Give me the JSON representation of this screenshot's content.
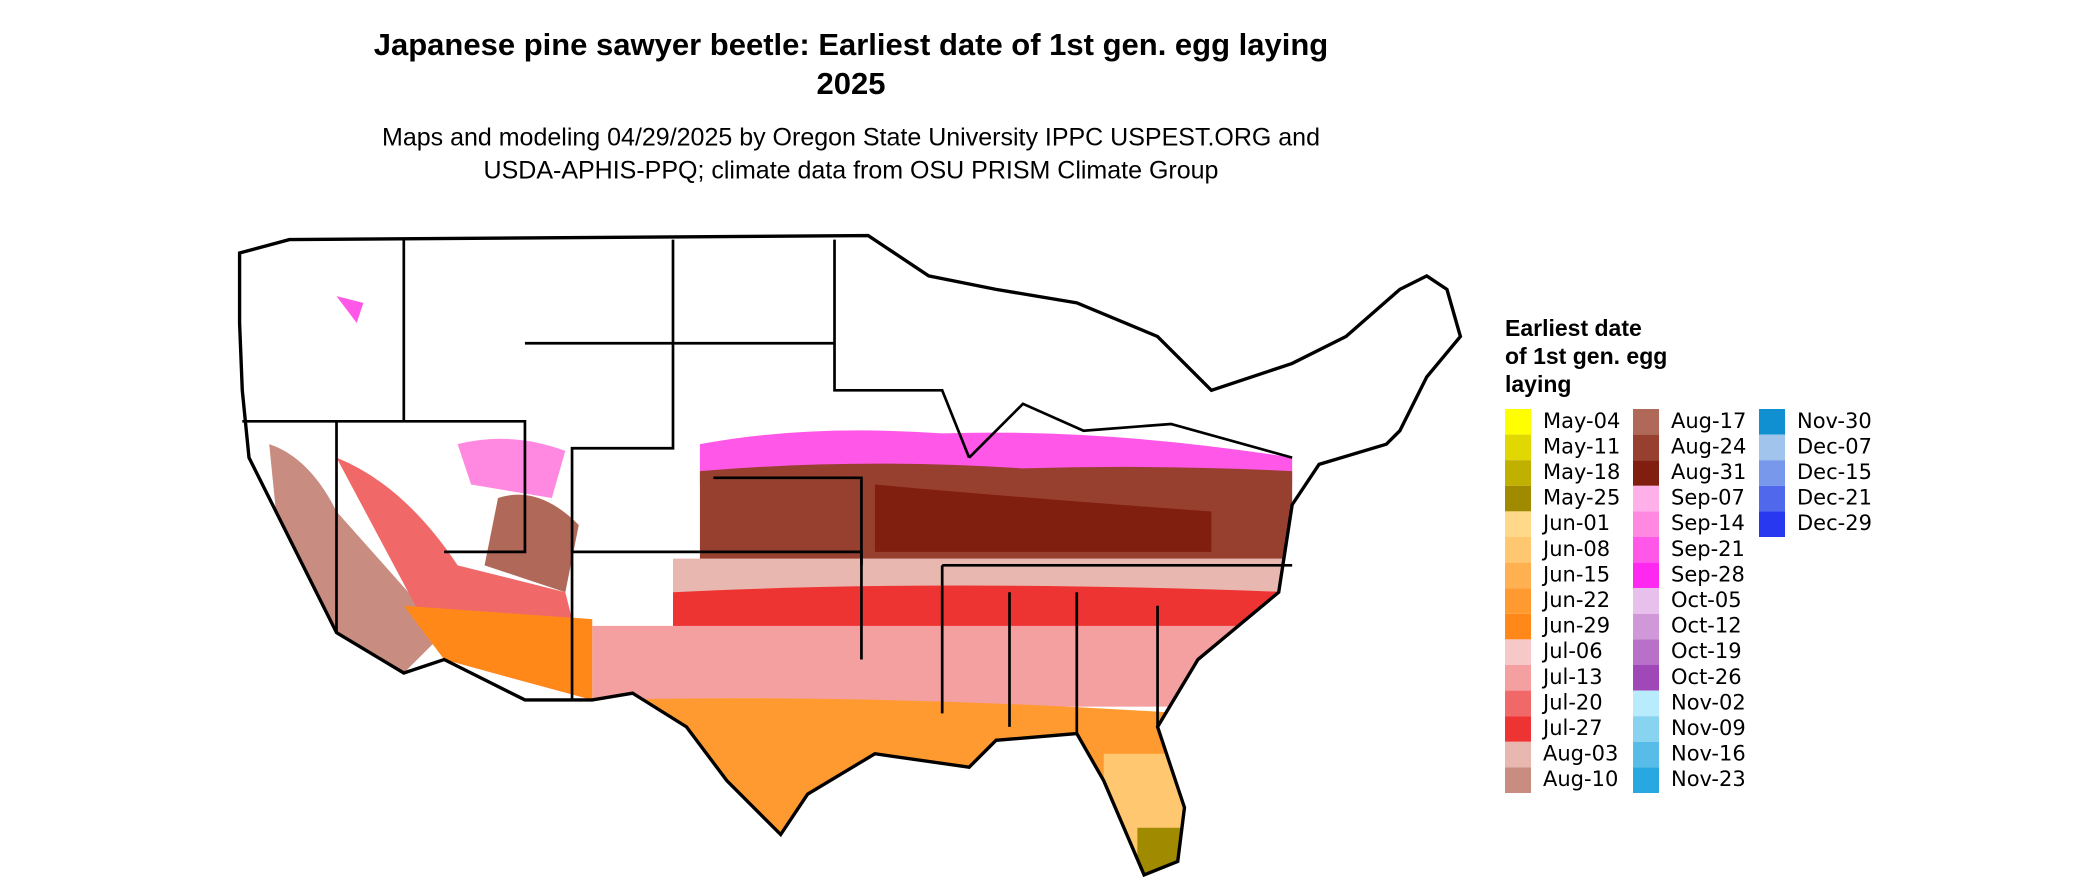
{
  "title": {
    "lines": [
      "Japanese pine sawyer beetle: Earliest date of 1st gen. egg laying",
      "2025"
    ]
  },
  "subtitle": {
    "lines": [
      "Maps and modeling 04/29/2025 by Oregon State University IPPC USPEST.ORG and",
      "USDA-APHIS-PPQ; climate data from OSU PRISM Climate Group"
    ]
  },
  "legend": {
    "title_lines": [
      "Earliest date",
      "of 1st gen. egg",
      "laying"
    ],
    "items": [
      {
        "label": "May-04",
        "color": "#ffff00"
      },
      {
        "label": "May-11",
        "color": "#e0d800"
      },
      {
        "label": "May-18",
        "color": "#c0b000"
      },
      {
        "label": "May-25",
        "color": "#a08a00"
      },
      {
        "label": "Jun-01",
        "color": "#ffd88a"
      },
      {
        "label": "Jun-08",
        "color": "#ffc870"
      },
      {
        "label": "Jun-15",
        "color": "#ffb050"
      },
      {
        "label": "Jun-22",
        "color": "#ff9a30"
      },
      {
        "label": "Jun-29",
        "color": "#ff8818"
      },
      {
        "label": "Jul-06",
        "color": "#f7c8c8"
      },
      {
        "label": "Jul-13",
        "color": "#f4a0a0"
      },
      {
        "label": "Jul-20",
        "color": "#f06868"
      },
      {
        "label": "Jul-27",
        "color": "#ee3333"
      },
      {
        "label": "Aug-03",
        "color": "#e8b8b0"
      },
      {
        "label": "Aug-10",
        "color": "#c88c80"
      },
      {
        "label": "Aug-17",
        "color": "#b06858"
      },
      {
        "label": "Aug-24",
        "color": "#984030"
      },
      {
        "label": "Aug-31",
        "color": "#801e10"
      },
      {
        "label": "Sep-07",
        "color": "#ffb0e8"
      },
      {
        "label": "Sep-14",
        "color": "#ff88e0"
      },
      {
        "label": "Sep-21",
        "color": "#ff58e8"
      },
      {
        "label": "Sep-28",
        "color": "#ff28f0"
      },
      {
        "label": "Oct-05",
        "color": "#e8c0ec"
      },
      {
        "label": "Oct-12",
        "color": "#d098d8"
      },
      {
        "label": "Oct-19",
        "color": "#b870c8"
      },
      {
        "label": "Oct-26",
        "color": "#a048b8"
      },
      {
        "label": "Nov-02",
        "color": "#b8ecfc"
      },
      {
        "label": "Nov-09",
        "color": "#88d4f0"
      },
      {
        "label": "Nov-16",
        "color": "#58bce8"
      },
      {
        "label": "Nov-23",
        "color": "#28a8e0"
      },
      {
        "label": "Nov-30",
        "color": "#1090d0"
      },
      {
        "label": "Dec-07",
        "color": "#a0c4ec"
      },
      {
        "label": "Dec-15",
        "color": "#7898ec"
      },
      {
        "label": "Dec-21",
        "color": "#5068ec"
      },
      {
        "label": "Dec-29",
        "color": "#2838f0"
      }
    ]
  }
}
